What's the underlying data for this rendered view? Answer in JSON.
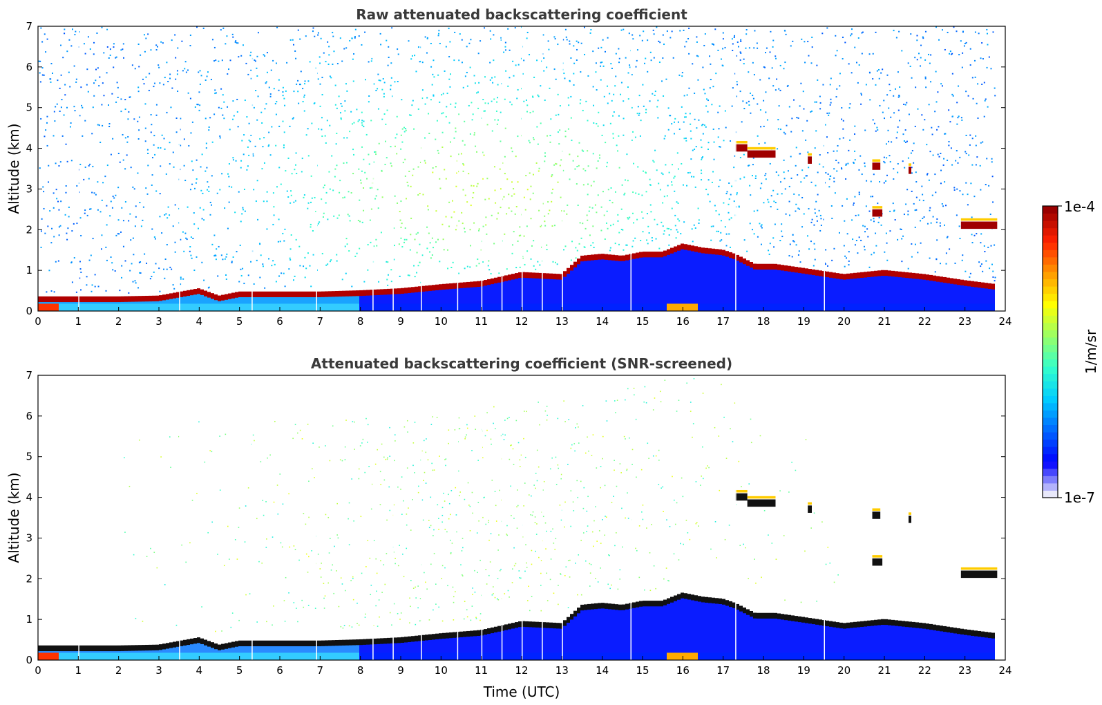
{
  "chart_data": [
    {
      "type": "heatmap",
      "title": "Raw attenuated backscattering coefficient",
      "xlabel": "",
      "ylabel": "Altitude (km)",
      "xlim": [
        0,
        24
      ],
      "ylim": [
        0,
        7
      ],
      "xticks": [
        "0",
        "1",
        "2",
        "3",
        "4",
        "5",
        "6",
        "7",
        "8",
        "9",
        "10",
        "11",
        "12",
        "13",
        "14",
        "15",
        "16",
        "17",
        "18",
        "19",
        "20",
        "21",
        "22",
        "23",
        "24"
      ],
      "yticks": [
        "0",
        "1",
        "2",
        "3",
        "4",
        "5",
        "6",
        "7"
      ],
      "data_end_hour": 23.8,
      "layer_height_km": {
        "t": [
          0,
          1,
          2,
          3,
          4,
          4.5,
          5,
          6,
          7,
          8,
          9,
          10,
          11,
          12,
          13,
          13.5,
          14,
          14.5,
          15,
          15.5,
          16,
          16.5,
          17,
          17.3,
          17.8,
          18.3,
          19,
          20,
          21,
          22,
          23,
          23.8
        ],
        "h": [
          0.3,
          0.3,
          0.3,
          0.32,
          0.5,
          0.32,
          0.42,
          0.42,
          0.42,
          0.45,
          0.5,
          0.6,
          0.68,
          0.9,
          0.85,
          1.3,
          1.35,
          1.3,
          1.4,
          1.4,
          1.6,
          1.5,
          1.45,
          1.35,
          1.1,
          1.1,
          1.0,
          0.85,
          0.95,
          0.85,
          0.7,
          0.6
        ]
      },
      "cloud_patches": [
        {
          "t0": 17.3,
          "t1": 17.6,
          "alt": 4.0
        },
        {
          "t0": 17.6,
          "t1": 18.3,
          "alt": 3.85
        },
        {
          "t0": 19.1,
          "t1": 19.2,
          "alt": 3.7
        },
        {
          "t0": 20.7,
          "t1": 20.9,
          "alt": 3.55
        },
        {
          "t0": 21.6,
          "t1": 21.65,
          "alt": 3.45
        },
        {
          "t0": 20.7,
          "t1": 20.95,
          "alt": 2.4
        },
        {
          "t0": 22.9,
          "t1": 23.8,
          "alt": 2.1
        }
      ]
    },
    {
      "type": "heatmap",
      "title": "Attenuated backscattering coefficient (SNR-screened)",
      "xlabel": "Time (UTC)",
      "ylabel": "Altitude (km)",
      "xlim": [
        0,
        24
      ],
      "ylim": [
        0,
        7
      ],
      "xticks": [
        "0",
        "1",
        "2",
        "3",
        "4",
        "5",
        "6",
        "7",
        "8",
        "9",
        "10",
        "11",
        "12",
        "13",
        "14",
        "15",
        "16",
        "17",
        "18",
        "19",
        "20",
        "21",
        "22",
        "23",
        "24"
      ],
      "yticks": [
        "0",
        "1",
        "2",
        "3",
        "4",
        "5",
        "6",
        "7"
      ]
    }
  ],
  "colorbar": {
    "min_label": "1e-7",
    "max_label": "1e-4",
    "unit_label": "1/m/sr",
    "colors": [
      "#e8e8fa",
      "#0000ff",
      "#0066ff",
      "#00ccff",
      "#33ffcc",
      "#99ff66",
      "#ffff00",
      "#ff9900",
      "#ff2200",
      "#990000"
    ]
  }
}
